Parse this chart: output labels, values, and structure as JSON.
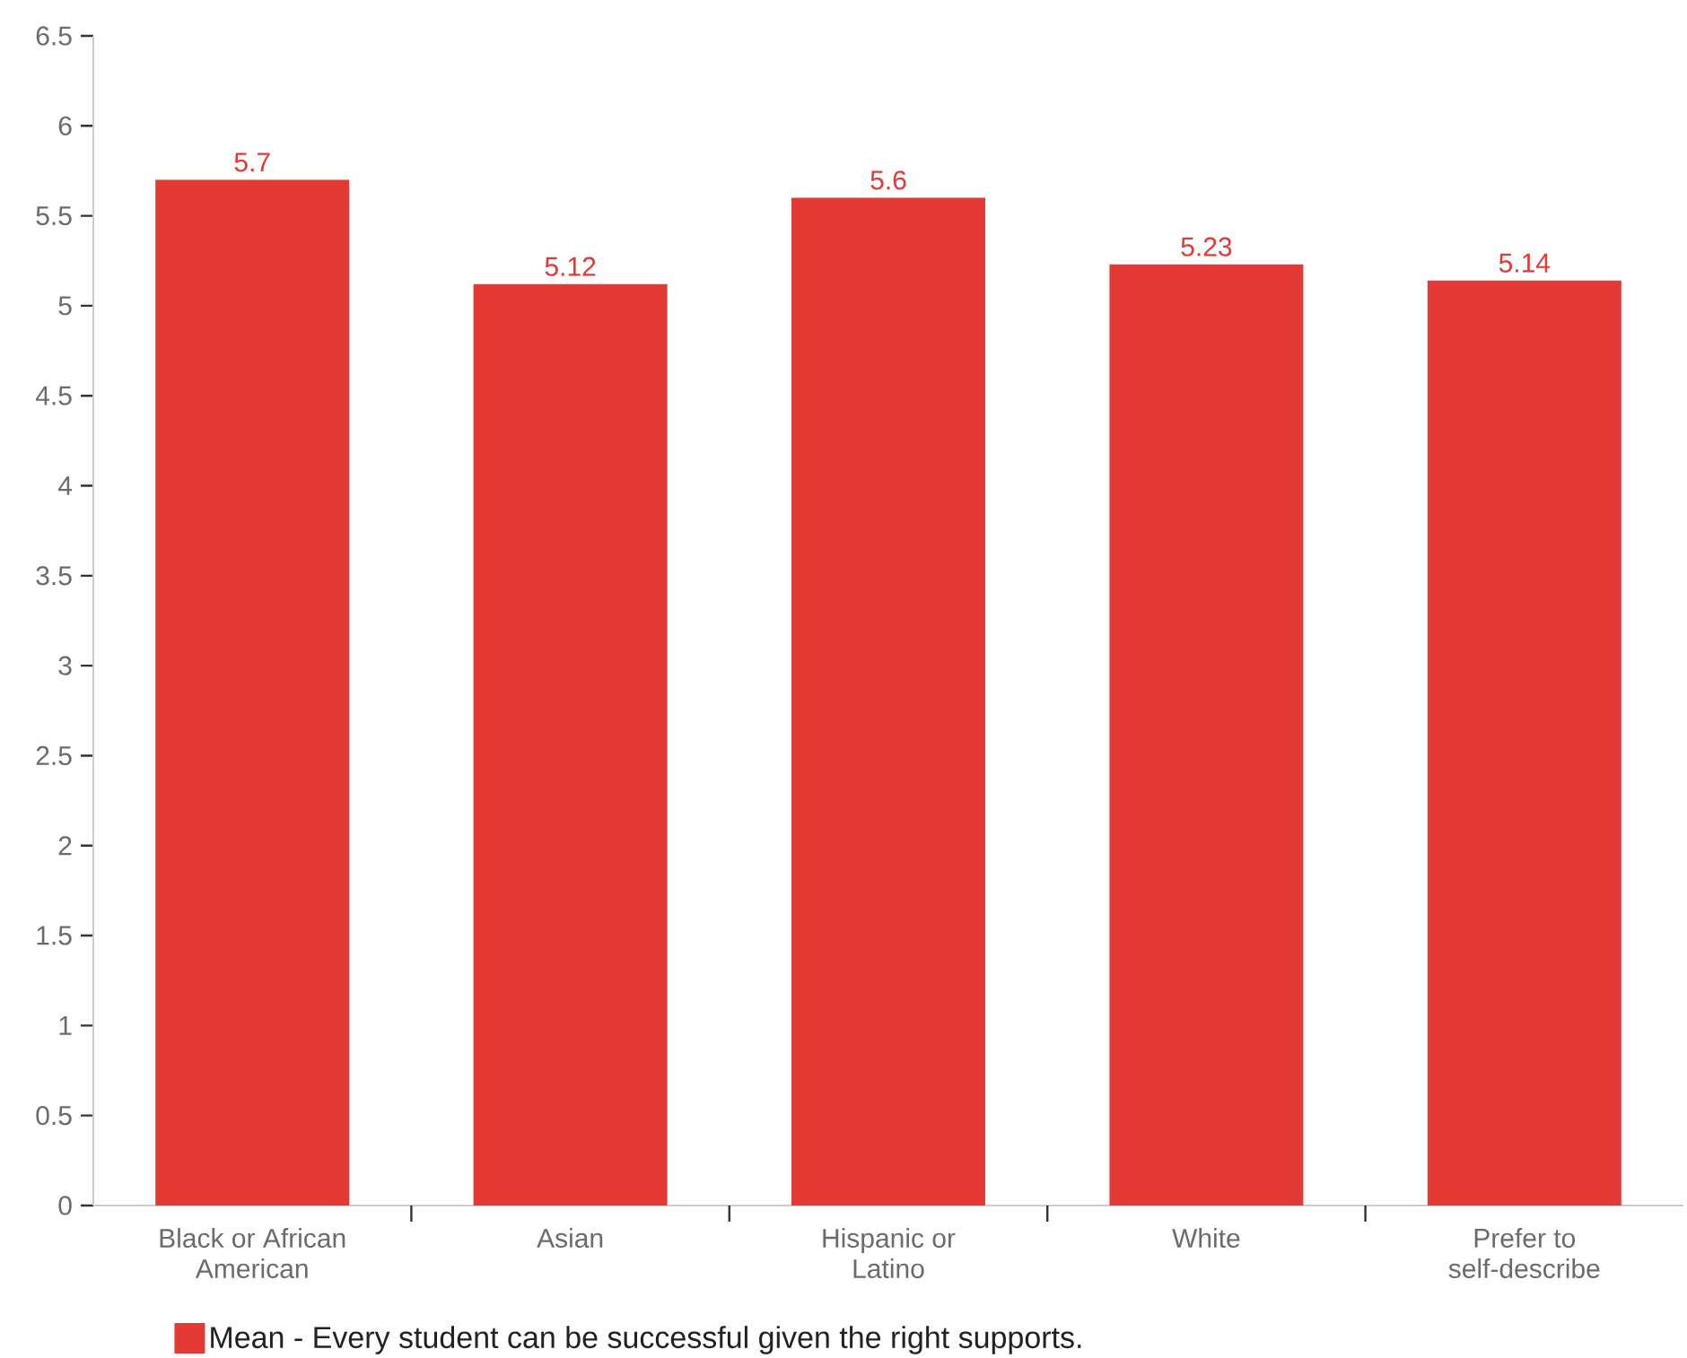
{
  "chart_data": {
    "type": "bar",
    "categories": [
      "Black or African American",
      "Asian",
      "Hispanic or Latino",
      "White",
      "Prefer to self-describe"
    ],
    "series": [
      {
        "name": "Mean - Every student can be successful given the right supports.",
        "color": "#e43a36",
        "values": [
          5.7,
          5.12,
          5.6,
          5.23,
          5.14
        ]
      }
    ],
    "ylim": [
      0,
      6.5
    ],
    "yticks": [
      0,
      0.5,
      1,
      1.5,
      2,
      2.5,
      3,
      3.5,
      4,
      4.5,
      5,
      5.5,
      6,
      6.5
    ],
    "data_labels": true,
    "legend": "bottom"
  }
}
